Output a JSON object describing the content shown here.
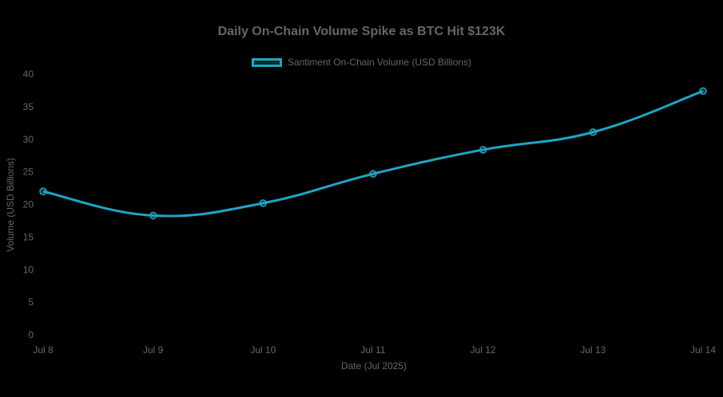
{
  "chart_data": {
    "type": "line",
    "title": "Daily On-Chain Volume Spike as BTC Hit $123K",
    "xlabel": "Date (Jul 2025)",
    "ylabel": "Volume (USD Billions)",
    "categories": [
      "Jul 8",
      "Jul 9",
      "Jul 10",
      "Jul 11",
      "Jul 12",
      "Jul 13",
      "Jul 14"
    ],
    "series": [
      {
        "name": "Santiment On-Chain Volume (USD Billions)",
        "values": [
          22.0,
          18.3,
          20.2,
          24.7,
          28.4,
          31.1,
          37.4
        ],
        "color": "#1ea6c4"
      }
    ],
    "ylim": [
      0,
      40
    ],
    "yticks": [
      0,
      5,
      10,
      15,
      20,
      25,
      30,
      35,
      40
    ],
    "grid": false,
    "legend_position": "top-center",
    "background": "#000000"
  }
}
